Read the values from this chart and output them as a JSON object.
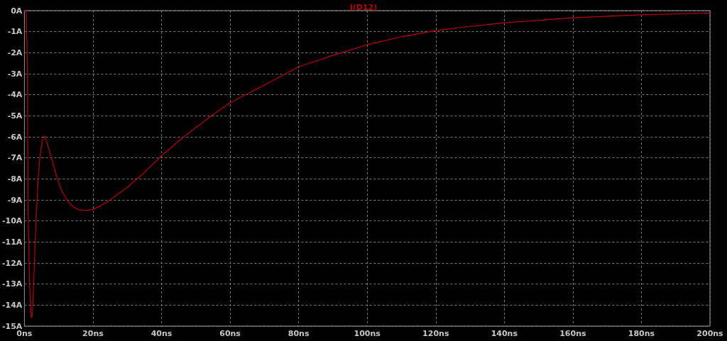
{
  "chart_data": {
    "type": "line",
    "title": "I(D12)",
    "x": [
      0,
      0.5,
      0.8,
      1.1,
      1.5,
      2.0,
      2.3,
      2.8,
      3.4,
      4.0,
      4.5,
      5.2,
      5.8,
      6.6,
      7.9,
      9.6,
      11,
      12.4,
      14.4,
      16,
      18.2,
      20,
      22,
      25,
      30,
      35,
      40,
      45,
      50,
      55,
      60,
      70,
      80,
      90,
      100,
      110,
      120,
      130,
      140,
      160,
      180,
      200
    ],
    "series": [
      {
        "color": "#c00000",
        "values": [
          0,
          0,
          -2,
          -9.7,
          -13,
          -14.6,
          -14.5,
          -12.5,
          -10,
          -8,
          -7,
          -6.2,
          -5.95,
          -6.3,
          -7,
          -8,
          -8.6,
          -9,
          -9.35,
          -9.47,
          -9.5,
          -9.45,
          -9.3,
          -9.0,
          -8.4,
          -7.7,
          -6.9,
          -6.2,
          -5.56,
          -4.95,
          -4.38,
          -3.54,
          -2.67,
          -2.13,
          -1.62,
          -1.24,
          -0.95,
          -0.75,
          -0.58,
          -0.34,
          -0.2,
          -0.11
        ]
      }
    ],
    "xlim": [
      0,
      200
    ],
    "xticks": [
      {
        "value": 0,
        "label": "0ns"
      },
      {
        "value": 20,
        "label": "20ns"
      },
      {
        "value": 40,
        "label": "40ns"
      },
      {
        "value": 60,
        "label": "60ns"
      },
      {
        "value": 80,
        "label": "80ns"
      },
      {
        "value": 100,
        "label": "100ns"
      },
      {
        "value": 120,
        "label": "120ns"
      },
      {
        "value": 140,
        "label": "140ns"
      },
      {
        "value": 160,
        "label": "160ns"
      },
      {
        "value": 180,
        "label": "180ns"
      },
      {
        "value": 200,
        "label": "200ns"
      }
    ],
    "ylim": [
      -15,
      0
    ],
    "yticks": [
      {
        "value": 0,
        "label": "0A"
      },
      {
        "value": -1,
        "label": "-1A"
      },
      {
        "value": -2,
        "label": "-2A"
      },
      {
        "value": -3,
        "label": "-3A"
      },
      {
        "value": -4,
        "label": "-4A"
      },
      {
        "value": -5,
        "label": "-5A"
      },
      {
        "value": -6,
        "label": "-6A"
      },
      {
        "value": -7,
        "label": "-7A"
      },
      {
        "value": -8,
        "label": "-8A"
      },
      {
        "value": -9,
        "label": "-9A"
      },
      {
        "value": -10,
        "label": "-10A"
      },
      {
        "value": -11,
        "label": "-11A"
      },
      {
        "value": -12,
        "label": "-12A"
      },
      {
        "value": -13,
        "label": "-13A"
      },
      {
        "value": -14,
        "label": "-14A"
      },
      {
        "value": -15,
        "label": "-15A"
      }
    ],
    "grid": true,
    "marker": "none",
    "line_style": "solid"
  }
}
